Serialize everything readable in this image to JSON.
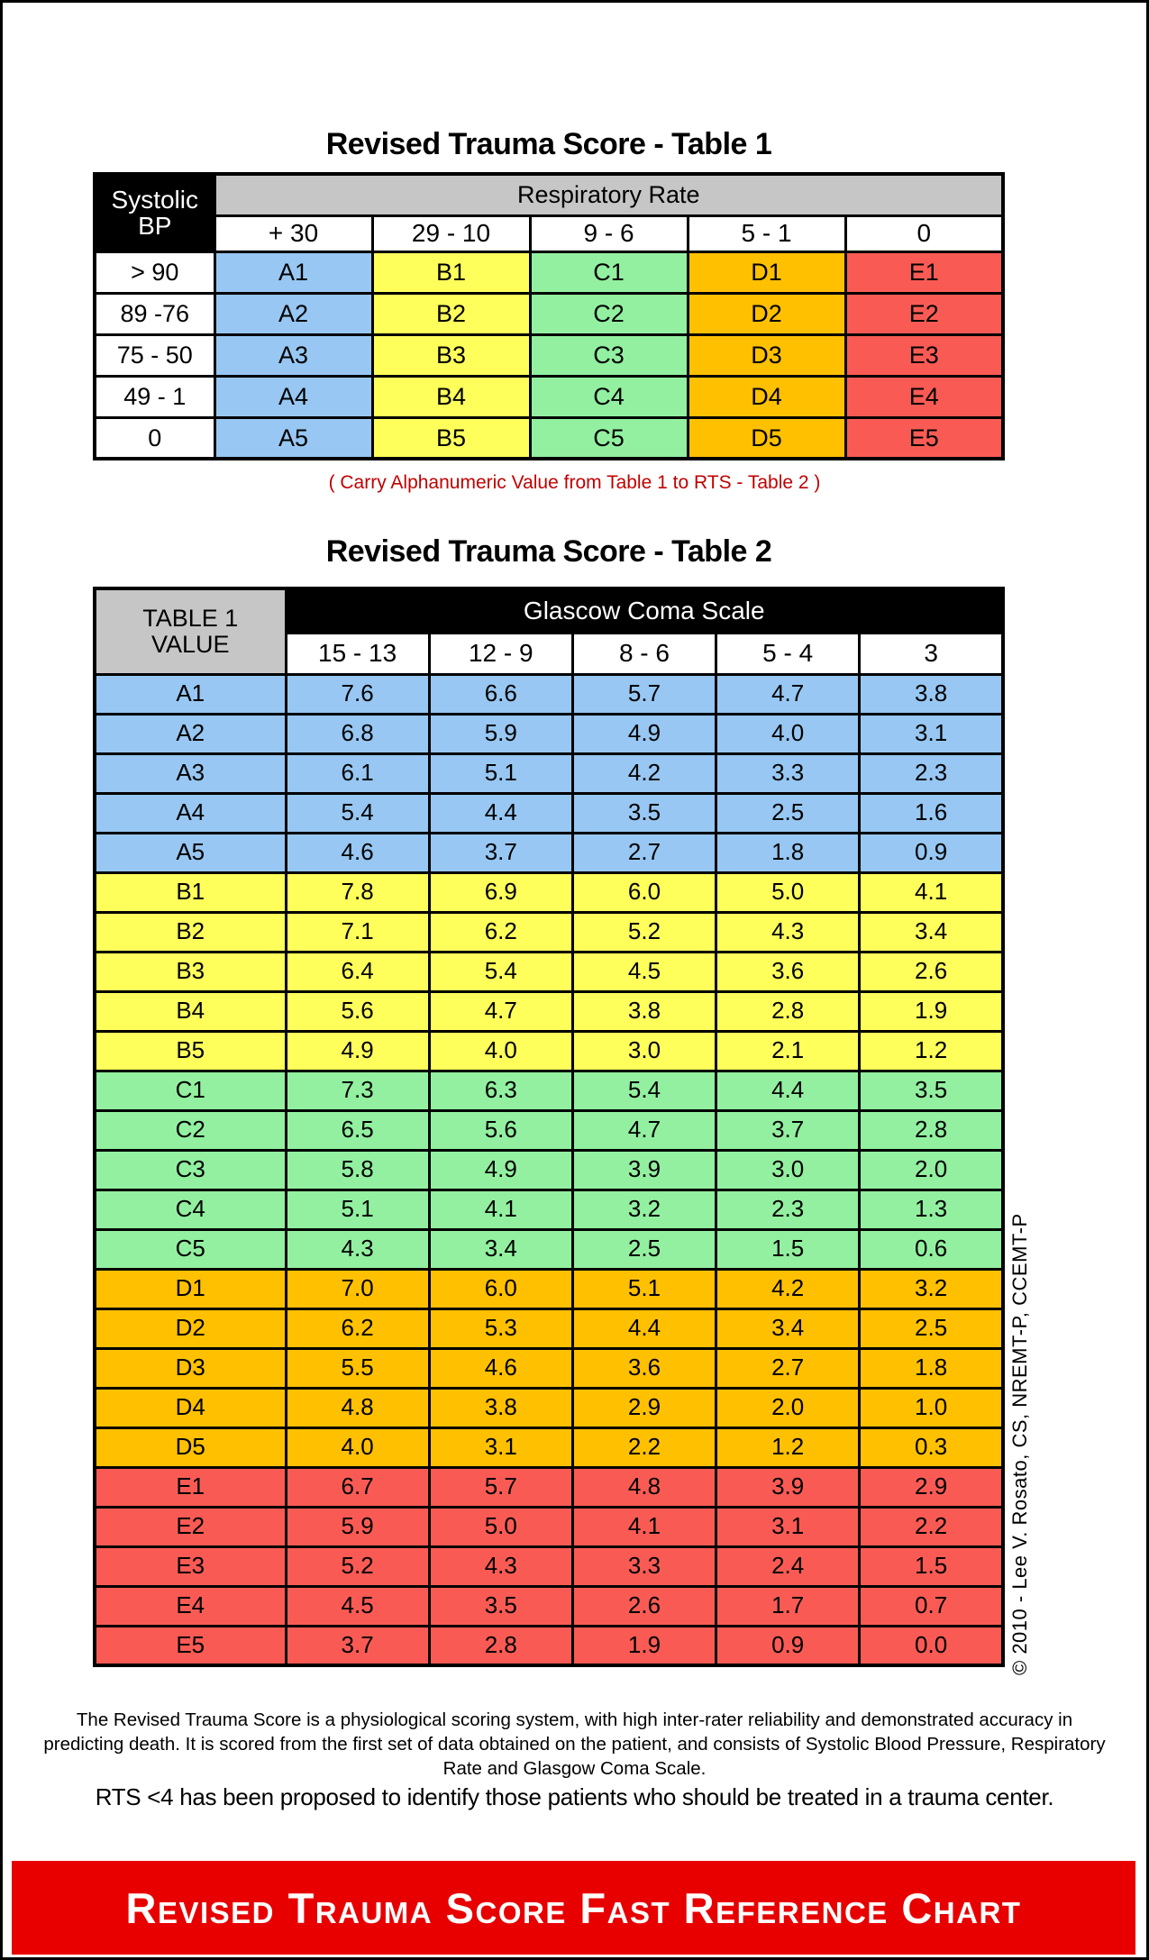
{
  "colors": {
    "groups": {
      "A": "#97C7F2",
      "B": "#FFFF5C",
      "C": "#92F0A0",
      "D": "#FFC000",
      "E": "#F95B54"
    },
    "banner_red": "#E80000",
    "note_red": "#C00000",
    "header_gray": "#C6C6C6",
    "header_black": "#000000",
    "label_white": "#FFFFFF"
  },
  "table1": {
    "title": "Revised Trauma Score - Table 1",
    "row_header_line1": "Systolic",
    "row_header_line2": "BP",
    "col_group": "Respiratory Rate",
    "columns": [
      "+ 30",
      "29 - 10",
      "9 - 6",
      "5 - 1",
      "0"
    ],
    "rows": [
      {
        "label": "> 90",
        "cells": [
          "A1",
          "B1",
          "C1",
          "D1",
          "E1"
        ]
      },
      {
        "label": "89 -76",
        "cells": [
          "A2",
          "B2",
          "C2",
          "D2",
          "E2"
        ]
      },
      {
        "label": "75 - 50",
        "cells": [
          "A3",
          "B3",
          "C3",
          "D3",
          "E3"
        ]
      },
      {
        "label": "49 - 1",
        "cells": [
          "A4",
          "B4",
          "C4",
          "D4",
          "E4"
        ]
      },
      {
        "label": "0",
        "cells": [
          "A5",
          "B5",
          "C5",
          "D5",
          "E5"
        ]
      }
    ],
    "note": "( Carry Alphanumeric Value from Table 1 to RTS - Table 2 )"
  },
  "table2": {
    "title": "Revised Trauma Score - Table 2",
    "row_header_line1": "TABLE 1",
    "row_header_line2": "VALUE",
    "col_group": "Glascow Coma Scale",
    "columns": [
      "15 - 13",
      "12 - 9",
      "8 - 6",
      "5 - 4",
      "3"
    ],
    "rows": [
      {
        "label": "A1",
        "cells": [
          "7.6",
          "6.6",
          "5.7",
          "4.7",
          "3.8"
        ]
      },
      {
        "label": "A2",
        "cells": [
          "6.8",
          "5.9",
          "4.9",
          "4.0",
          "3.1"
        ]
      },
      {
        "label": "A3",
        "cells": [
          "6.1",
          "5.1",
          "4.2",
          "3.3",
          "2.3"
        ]
      },
      {
        "label": "A4",
        "cells": [
          "5.4",
          "4.4",
          "3.5",
          "2.5",
          "1.6"
        ]
      },
      {
        "label": "A5",
        "cells": [
          "4.6",
          "3.7",
          "2.7",
          "1.8",
          "0.9"
        ]
      },
      {
        "label": "B1",
        "cells": [
          "7.8",
          "6.9",
          "6.0",
          "5.0",
          "4.1"
        ]
      },
      {
        "label": "B2",
        "cells": [
          "7.1",
          "6.2",
          "5.2",
          "4.3",
          "3.4"
        ]
      },
      {
        "label": "B3",
        "cells": [
          "6.4",
          "5.4",
          "4.5",
          "3.6",
          "2.6"
        ]
      },
      {
        "label": "B4",
        "cells": [
          "5.6",
          "4.7",
          "3.8",
          "2.8",
          "1.9"
        ]
      },
      {
        "label": "B5",
        "cells": [
          "4.9",
          "4.0",
          "3.0",
          "2.1",
          "1.2"
        ]
      },
      {
        "label": "C1",
        "cells": [
          "7.3",
          "6.3",
          "5.4",
          "4.4",
          "3.5"
        ]
      },
      {
        "label": "C2",
        "cells": [
          "6.5",
          "5.6",
          "4.7",
          "3.7",
          "2.8"
        ]
      },
      {
        "label": "C3",
        "cells": [
          "5.8",
          "4.9",
          "3.9",
          "3.0",
          "2.0"
        ]
      },
      {
        "label": "C4",
        "cells": [
          "5.1",
          "4.1",
          "3.2",
          "2.3",
          "1.3"
        ]
      },
      {
        "label": "C5",
        "cells": [
          "4.3",
          "3.4",
          "2.5",
          "1.5",
          "0.6"
        ]
      },
      {
        "label": "D1",
        "cells": [
          "7.0",
          "6.0",
          "5.1",
          "4.2",
          "3.2"
        ]
      },
      {
        "label": "D2",
        "cells": [
          "6.2",
          "5.3",
          "4.4",
          "3.4",
          "2.5"
        ]
      },
      {
        "label": "D3",
        "cells": [
          "5.5",
          "4.6",
          "3.6",
          "2.7",
          "1.8"
        ]
      },
      {
        "label": "D4",
        "cells": [
          "4.8",
          "3.8",
          "2.9",
          "2.0",
          "1.0"
        ]
      },
      {
        "label": "D5",
        "cells": [
          "4.0",
          "3.1",
          "2.2",
          "1.2",
          "0.3"
        ]
      },
      {
        "label": "E1",
        "cells": [
          "6.7",
          "5.7",
          "4.8",
          "3.9",
          "2.9"
        ]
      },
      {
        "label": "E2",
        "cells": [
          "5.9",
          "5.0",
          "4.1",
          "3.1",
          "2.2"
        ]
      },
      {
        "label": "E3",
        "cells": [
          "5.2",
          "4.3",
          "3.3",
          "2.4",
          "1.5"
        ]
      },
      {
        "label": "E4",
        "cells": [
          "4.5",
          "3.5",
          "2.6",
          "1.7",
          "0.7"
        ]
      },
      {
        "label": "E5",
        "cells": [
          "3.7",
          "2.8",
          "1.9",
          "0.9",
          "0.0"
        ]
      }
    ]
  },
  "copyright": "© 2010 - Lee V. Rosato, CS, NREMT-P, CCEMT-P",
  "footer": {
    "description": "The Revised Trauma Score is a physiological scoring system, with high inter-rater reliability and demonstrated accuracy in predicting death. It is scored from the first set of data obtained on the patient, and consists of Systolic Blood Pressure, Respiratory Rate and Glasgow Coma Scale.",
    "rts_note": "RTS <4 has been proposed to identify those patients who should be treated in a trauma center."
  },
  "banner": {
    "text": "Revised Trauma Score Fast Reference Chart"
  }
}
